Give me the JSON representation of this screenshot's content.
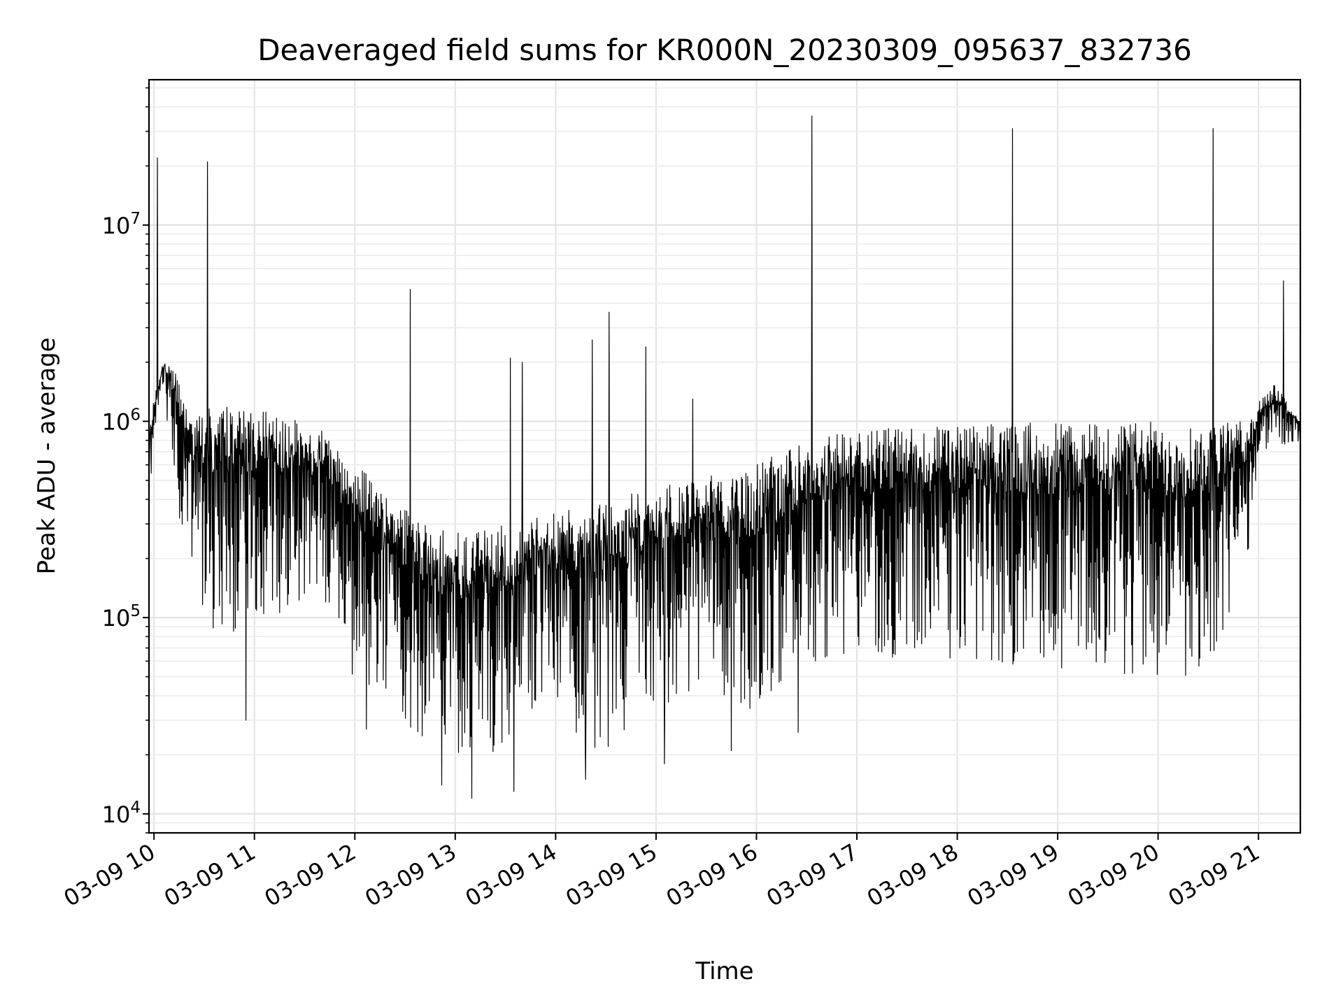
{
  "chart_data": {
    "type": "line",
    "title": "Deaveraged field sums for KR000N_20230309_095637_832736",
    "xlabel": "Time",
    "ylabel": "Peak ADU - average",
    "yscale": "log",
    "ylim": [
      8000,
      55000000
    ],
    "xlim": [
      "2023-03-09 09:57",
      "2023-03-09 21:25"
    ],
    "grid": true,
    "line_color": "#000000",
    "x_tick_labels": [
      "03-09 10",
      "03-09 11",
      "03-09 12",
      "03-09 13",
      "03-09 14",
      "03-09 15",
      "03-09 16",
      "03-09 17",
      "03-09 18",
      "03-09 19",
      "03-09 20",
      "03-09 21"
    ],
    "x_tick_hours": [
      10,
      11,
      12,
      13,
      14,
      15,
      16,
      17,
      18,
      19,
      20,
      21
    ],
    "y_tick_labels": [
      {
        "base": "10",
        "exp": "4",
        "value": 10000
      },
      {
        "base": "10",
        "exp": "5",
        "value": 100000
      },
      {
        "base": "10",
        "exp": "6",
        "value": 1000000
      },
      {
        "base": "10",
        "exp": "7",
        "value": 10000000
      }
    ],
    "series": [
      {
        "envelope": {
          "x": [
            "2023-03-09 09:57",
            "2023-03-09 10:05",
            "2023-03-09 10:10",
            "2023-03-09 10:20",
            "2023-03-09 10:40",
            "2023-03-09 11:00",
            "2023-03-09 11:20",
            "2023-03-09 11:40",
            "2023-03-09 12:00",
            "2023-03-09 12:20",
            "2023-03-09 12:40",
            "2023-03-09 13:00",
            "2023-03-09 13:20",
            "2023-03-09 13:40",
            "2023-03-09 14:00",
            "2023-03-09 14:20",
            "2023-03-09 14:40",
            "2023-03-09 15:00",
            "2023-03-09 15:20",
            "2023-03-09 15:40",
            "2023-03-09 16:00",
            "2023-03-09 16:30",
            "2023-03-09 17:00",
            "2023-03-09 17:30",
            "2023-03-09 18:00",
            "2023-03-09 18:30",
            "2023-03-09 19:00",
            "2023-03-09 19:30",
            "2023-03-09 20:00",
            "2023-03-09 20:30",
            "2023-03-09 20:55",
            "2023-03-09 21:00",
            "2023-03-09 21:10",
            "2023-03-09 21:25"
          ],
          "high": [
            1000000,
            2000000,
            2200000,
            1100000,
            1200000,
            1150000,
            1050000,
            900000,
            650000,
            400000,
            320000,
            270000,
            280000,
            320000,
            350000,
            380000,
            420000,
            460000,
            500000,
            560000,
            620000,
            800000,
            900000,
            950000,
            950000,
            980000,
            1000000,
            1000000,
            1000000,
            1000000,
            1000000,
            1250000,
            1600000,
            1000000
          ],
          "low": [
            400000,
            1500000,
            600000,
            150000,
            55000,
            70000,
            100000,
            120000,
            40000,
            35000,
            20000,
            15000,
            17000,
            22000,
            30000,
            16000,
            20000,
            30000,
            35000,
            30000,
            28000,
            50000,
            60000,
            50000,
            50000,
            50000,
            45000,
            45000,
            40000,
            40000,
            200000,
            700000,
            700000,
            750000
          ]
        },
        "spikes": [
          {
            "t": "2023-03-09 10:02",
            "y": 22000000
          },
          {
            "t": "2023-03-09 10:32",
            "y": 21000000
          },
          {
            "t": "2023-03-09 12:33",
            "y": 4700000
          },
          {
            "t": "2023-03-09 13:33",
            "y": 2100000
          },
          {
            "t": "2023-03-09 13:40",
            "y": 2000000
          },
          {
            "t": "2023-03-09 14:22",
            "y": 2600000
          },
          {
            "t": "2023-03-09 14:32",
            "y": 3600000
          },
          {
            "t": "2023-03-09 14:54",
            "y": 2400000
          },
          {
            "t": "2023-03-09 15:22",
            "y": 1300000
          },
          {
            "t": "2023-03-09 16:33",
            "y": 36000000
          },
          {
            "t": "2023-03-09 18:33",
            "y": 31000000
          },
          {
            "t": "2023-03-09 20:33",
            "y": 31000000
          },
          {
            "t": "2023-03-09 21:15",
            "y": 5200000
          }
        ],
        "dips": [
          {
            "t": "2023-03-09 10:55",
            "y": 30000
          },
          {
            "t": "2023-03-09 12:07",
            "y": 27000
          },
          {
            "t": "2023-03-09 12:52",
            "y": 14000
          },
          {
            "t": "2023-03-09 13:10",
            "y": 12000
          },
          {
            "t": "2023-03-09 13:35",
            "y": 13000
          },
          {
            "t": "2023-03-09 14:18",
            "y": 15000
          },
          {
            "t": "2023-03-09 15:05",
            "y": 18000
          },
          {
            "t": "2023-03-09 15:45",
            "y": 21000
          },
          {
            "t": "2023-03-09 16:25",
            "y": 26000
          }
        ]
      }
    ]
  }
}
